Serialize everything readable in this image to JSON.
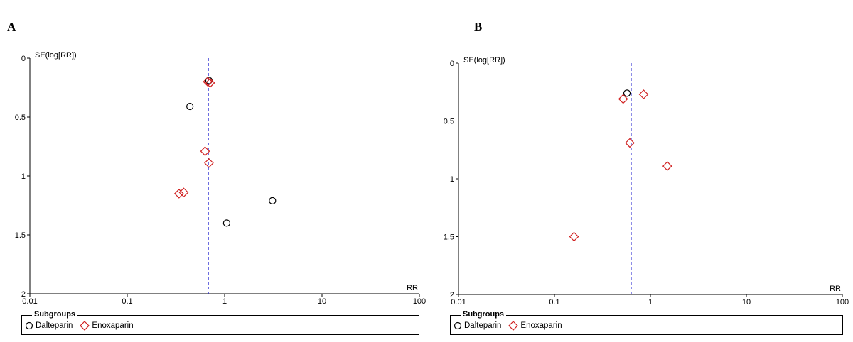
{
  "panels": {
    "a": {
      "letter": "A",
      "legend": {
        "title": "Subgroups",
        "items": [
          "Dalteparin",
          "Enoxaparin"
        ]
      }
    },
    "b": {
      "letter": "B",
      "legend": {
        "title": "Subgroups",
        "items": [
          "Dalteparin",
          "Enoxaparin"
        ]
      }
    }
  },
  "colors": {
    "dalteparin": "#000000",
    "enoxaparin": "#d02020",
    "pooled_line": "#2020d0"
  },
  "chart_data": [
    {
      "type": "scatter",
      "panel": "A",
      "xlabel": "RR",
      "ylabel": "SE(log[RR])",
      "x_scale": "log",
      "xlim": [
        0.01,
        100
      ],
      "ylim": [
        0,
        2
      ],
      "y_inverted": true,
      "x_ticks": [
        "0.01",
        "0.1",
        "1",
        "10",
        "100"
      ],
      "y_ticks": [
        "0",
        "0.5",
        "1",
        "1.5",
        "2"
      ],
      "reference_line_x": 0.68,
      "series": [
        {
          "name": "Dalteparin",
          "marker": "circle",
          "points": [
            [
              0.69,
              0.19
            ],
            [
              0.44,
              0.41
            ],
            [
              1.05,
              1.4
            ],
            [
              3.1,
              1.21
            ]
          ]
        },
        {
          "name": "Enoxaparin",
          "marker": "diamond",
          "points": [
            [
              0.67,
              0.2
            ],
            [
              0.71,
              0.21
            ],
            [
              0.63,
              0.79
            ],
            [
              0.69,
              0.89
            ],
            [
              0.34,
              1.15
            ],
            [
              0.38,
              1.14
            ]
          ]
        }
      ]
    },
    {
      "type": "scatter",
      "panel": "B",
      "xlabel": "RR",
      "ylabel": "SE(log[RR])",
      "x_scale": "log",
      "xlim": [
        0.01,
        100
      ],
      "ylim": [
        0,
        2
      ],
      "y_inverted": true,
      "x_ticks": [
        "0.01",
        "0.1",
        "1",
        "10",
        "100"
      ],
      "y_ticks": [
        "0",
        "0.5",
        "1",
        "1.5",
        "2"
      ],
      "reference_line_x": 0.63,
      "series": [
        {
          "name": "Dalteparin",
          "marker": "circle",
          "points": [
            [
              0.57,
              0.26
            ]
          ]
        },
        {
          "name": "Enoxaparin",
          "marker": "diamond",
          "points": [
            [
              0.52,
              0.31
            ],
            [
              0.85,
              0.27
            ],
            [
              0.61,
              0.69
            ],
            [
              1.5,
              0.89
            ],
            [
              0.16,
              1.5
            ]
          ]
        }
      ]
    }
  ]
}
